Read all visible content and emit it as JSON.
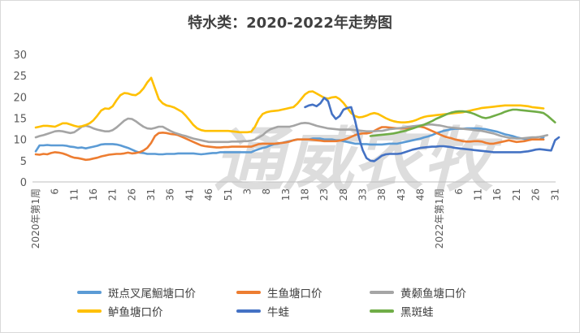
{
  "chart_data": {
    "type": "line",
    "title": "特水类：2020-2022年走势图",
    "xlabel": "",
    "ylabel": "",
    "ylim": [
      0,
      30
    ],
    "yticks": [
      0,
      5,
      10,
      15,
      20,
      25,
      30
    ],
    "legend_position": "bottom",
    "grid": false,
    "x_tick_labels": [
      "2020年第1周",
      "6",
      "11",
      "16",
      "21",
      "26",
      "31",
      "36",
      "41",
      "46",
      "51",
      "3",
      "8",
      "13",
      "18",
      "23",
      "28",
      "33",
      "38",
      "43",
      "48",
      "2022年第1周",
      "6",
      "11",
      "16",
      "21",
      "26",
      "31"
    ],
    "watermark": "通威农牧",
    "series": [
      {
        "name": "斑点叉尾鮰塘口价",
        "color": "#5b9bd5",
        "start": 0,
        "values": [
          7.2,
          8.6,
          8.6,
          8.7,
          8.6,
          8.6,
          8.6,
          8.6,
          8.5,
          8.3,
          8.2,
          8.0,
          8.1,
          7.9,
          8.1,
          8.3,
          8.5,
          8.8,
          8.9,
          8.9,
          8.9,
          8.8,
          8.6,
          8.3,
          8.0,
          7.6,
          7.2,
          6.9,
          6.8,
          6.6,
          6.6,
          6.6,
          6.5,
          6.5,
          6.6,
          6.6,
          6.6,
          6.7,
          6.7,
          6.7,
          6.7,
          6.7,
          6.6,
          6.5,
          6.6,
          6.7,
          6.8,
          6.8,
          7.0,
          7.0,
          7.0,
          7.0,
          7.0,
          7.0,
          7.0,
          7.0,
          7.0,
          7.4,
          7.7,
          8.0,
          8.2,
          8.6,
          8.9,
          9.0,
          9.2,
          9.4,
          9.6,
          9.8,
          10.0,
          10.0,
          10.0,
          10.0,
          10.2,
          10.2,
          10.2,
          10.0,
          10.0,
          10.0,
          9.8,
          9.8,
          9.6,
          9.4,
          9.2,
          9.0,
          9.0,
          8.9,
          8.9,
          8.8,
          8.8,
          8.8,
          8.8,
          8.9,
          9.0,
          9.0,
          9.0,
          9.2,
          9.4,
          9.6,
          9.8,
          10.0,
          10.2,
          10.5,
          10.7,
          11.0,
          11.4,
          11.7,
          12.0,
          12.2,
          12.4,
          12.5,
          12.5,
          12.5,
          12.6,
          12.6,
          12.6,
          12.6,
          12.5,
          12.4,
          12.2,
          12.0,
          11.8,
          11.5,
          11.2,
          11.0,
          10.8,
          10.5,
          10.3,
          10.1,
          10.0,
          10.0,
          10.0,
          10.0,
          10.5
        ]
      },
      {
        "name": "生鱼塘口价",
        "color": "#ed7d31",
        "start": 0,
        "values": [
          6.5,
          6.4,
          6.6,
          6.5,
          6.8,
          7.0,
          6.9,
          6.7,
          6.4,
          6.0,
          5.7,
          5.6,
          5.4,
          5.2,
          5.3,
          5.5,
          5.7,
          6.0,
          6.2,
          6.4,
          6.5,
          6.6,
          6.6,
          6.7,
          6.9,
          6.7,
          6.8,
          7.0,
          7.4,
          8.0,
          9.2,
          10.8,
          11.5,
          11.6,
          11.5,
          11.3,
          11.2,
          11.0,
          10.6,
          10.2,
          9.8,
          9.4,
          9.0,
          8.6,
          8.4,
          8.3,
          8.2,
          8.1,
          8.1,
          8.2,
          8.2,
          8.3,
          8.3,
          8.3,
          8.3,
          8.3,
          8.3,
          8.6,
          8.9,
          9.0,
          9.0,
          9.0,
          9.0,
          9.1,
          9.2,
          9.3,
          9.5,
          9.8,
          10.0,
          10.0,
          10.0,
          10.0,
          9.9,
          9.8,
          9.7,
          9.6,
          9.6,
          9.6,
          9.6,
          9.7,
          9.9,
          10.2,
          10.6,
          11.0,
          11.3,
          11.4,
          11.4,
          11.6,
          12.0,
          12.5,
          12.9,
          12.9,
          12.8,
          12.7,
          12.6,
          12.6,
          12.6,
          12.7,
          12.8,
          13.0,
          13.0,
          12.8,
          12.4,
          12.0,
          11.6,
          11.2,
          10.8,
          10.5,
          10.3,
          10.0,
          9.8,
          9.6,
          9.5,
          9.5,
          9.6,
          9.6,
          9.5,
          9.2,
          9.0,
          9.0,
          9.2,
          9.4,
          9.6,
          9.8,
          9.6,
          9.4,
          9.5,
          9.6,
          9.8,
          10.0,
          10.0,
          10.0,
          10.0
        ]
      },
      {
        "name": "黄颡鱼塘口价",
        "color": "#a5a5a5",
        "start": 0,
        "values": [
          10.5,
          10.8,
          11.0,
          11.3,
          11.6,
          11.9,
          12.0,
          11.9,
          11.7,
          11.5,
          11.7,
          12.3,
          13.0,
          13.2,
          13.0,
          12.6,
          12.3,
          12.1,
          11.9,
          11.9,
          12.2,
          12.8,
          13.6,
          14.4,
          14.9,
          14.8,
          14.3,
          13.6,
          13.0,
          12.6,
          12.5,
          12.7,
          13.0,
          13.0,
          12.5,
          12.0,
          11.6,
          11.3,
          11.0,
          10.8,
          10.5,
          10.2,
          10.0,
          9.8,
          9.6,
          9.4,
          9.4,
          9.4,
          9.4,
          9.4,
          9.4,
          9.5,
          9.5,
          9.5,
          9.6,
          9.6,
          9.7,
          10.0,
          10.5,
          11.0,
          11.8,
          12.4,
          12.7,
          13.0,
          13.0,
          13.0,
          13.0,
          13.2,
          13.5,
          13.8,
          13.9,
          13.8,
          13.5,
          13.2,
          13.0,
          12.8,
          12.6,
          12.5,
          12.4,
          12.3,
          12.3,
          12.3,
          12.3,
          12.2,
          12.1,
          12.0,
          11.9,
          11.9,
          11.9,
          12.0,
          12.0,
          12.2,
          12.4,
          12.5,
          12.6,
          12.7,
          12.8,
          13.0,
          13.1,
          13.2,
          13.3,
          13.4,
          13.5,
          13.5,
          13.4,
          13.3,
          13.1,
          12.9,
          12.8,
          12.7,
          12.6,
          12.5,
          12.4,
          12.3,
          12.2,
          12.1,
          12.0,
          11.8,
          11.6,
          11.4,
          11.1,
          10.8,
          10.6,
          10.4,
          10.3,
          10.2,
          10.2,
          10.3,
          10.4,
          10.5,
          10.5,
          10.6,
          10.8,
          11.0
        ]
      },
      {
        "name": "鲈鱼塘口价",
        "color": "#ffc000",
        "start": 0,
        "values": [
          12.8,
          13.0,
          13.2,
          13.2,
          13.1,
          13.0,
          13.4,
          13.8,
          13.8,
          13.5,
          13.2,
          13.0,
          13.1,
          13.4,
          13.8,
          14.5,
          15.6,
          16.8,
          17.3,
          17.2,
          17.8,
          19.2,
          20.4,
          20.9,
          20.8,
          20.5,
          20.4,
          21.0,
          22.0,
          23.4,
          24.5,
          22.0,
          19.5,
          18.5,
          18.0,
          17.8,
          17.5,
          17.0,
          16.5,
          15.6,
          14.5,
          13.4,
          12.6,
          12.2,
          12.0,
          12.0,
          12.0,
          12.0,
          12.0,
          12.0,
          12.0,
          11.9,
          11.8,
          11.7,
          11.7,
          11.7,
          11.8,
          13.0,
          14.8,
          16.0,
          16.4,
          16.6,
          16.7,
          16.8,
          17.0,
          17.2,
          17.4,
          17.6,
          18.4,
          19.5,
          20.6,
          21.2,
          21.3,
          20.8,
          20.3,
          19.8,
          19.6,
          19.9,
          20.0,
          19.5,
          18.6,
          17.4,
          16.2,
          15.5,
          15.2,
          15.3,
          15.6,
          16.0,
          16.2,
          16.0,
          15.5,
          15.0,
          14.6,
          14.3,
          14.1,
          14.0,
          14.0,
          14.1,
          14.3,
          14.6,
          15.0,
          15.3,
          15.5,
          15.6,
          15.7,
          15.8,
          15.9,
          16.0,
          16.1,
          16.2,
          16.3,
          16.4,
          16.6,
          16.8,
          17.0,
          17.2,
          17.4,
          17.5,
          17.6,
          17.7,
          17.8,
          17.9,
          18.0,
          18.0,
          18.0,
          18.0,
          18.0,
          17.9,
          17.8,
          17.6,
          17.5,
          17.4,
          17.3
        ]
      },
      {
        "name": "牛蛙",
        "color": "#4472c4",
        "start": 70,
        "values": [
          17.6,
          18.0,
          18.2,
          17.8,
          18.5,
          19.8,
          19.0,
          16.0,
          14.8,
          15.5,
          17.0,
          17.4,
          17.6,
          14.5,
          10.5,
          7.5,
          5.6,
          5.0,
          4.9,
          5.5,
          6.2,
          6.5,
          6.6,
          6.6,
          6.6,
          6.7,
          7.0,
          7.3,
          7.6,
          7.8,
          8.0,
          8.1,
          8.2,
          8.3,
          8.3,
          8.4,
          8.4,
          8.3,
          8.2,
          8.0,
          7.9,
          7.8,
          7.7,
          7.6,
          7.5,
          7.4,
          7.3,
          7.2,
          7.1,
          7.0,
          7.0,
          7.0,
          7.0,
          7.0,
          7.0,
          7.0,
          7.0,
          7.1,
          7.2,
          7.4,
          7.6,
          7.7,
          7.6,
          7.5,
          7.4,
          9.8,
          10.5
        ]
      },
      {
        "name": "黑斑蛙",
        "color": "#70ad47",
        "start": 87,
        "values": [
          10.8,
          10.9,
          11.0,
          11.1,
          11.2,
          11.3,
          11.4,
          11.6,
          11.8,
          12.0,
          12.3,
          12.6,
          12.9,
          13.2,
          13.5,
          13.9,
          14.3,
          14.8,
          15.2,
          15.6,
          16.0,
          16.3,
          16.5,
          16.6,
          16.6,
          16.5,
          16.3,
          16.0,
          15.6,
          15.2,
          15.0,
          15.2,
          15.5,
          15.8,
          16.1,
          16.5,
          16.8,
          17.0,
          17.0,
          16.9,
          16.8,
          16.7,
          16.6,
          16.5,
          16.4,
          16.2,
          15.6,
          14.8,
          14.0
        ]
      }
    ]
  }
}
